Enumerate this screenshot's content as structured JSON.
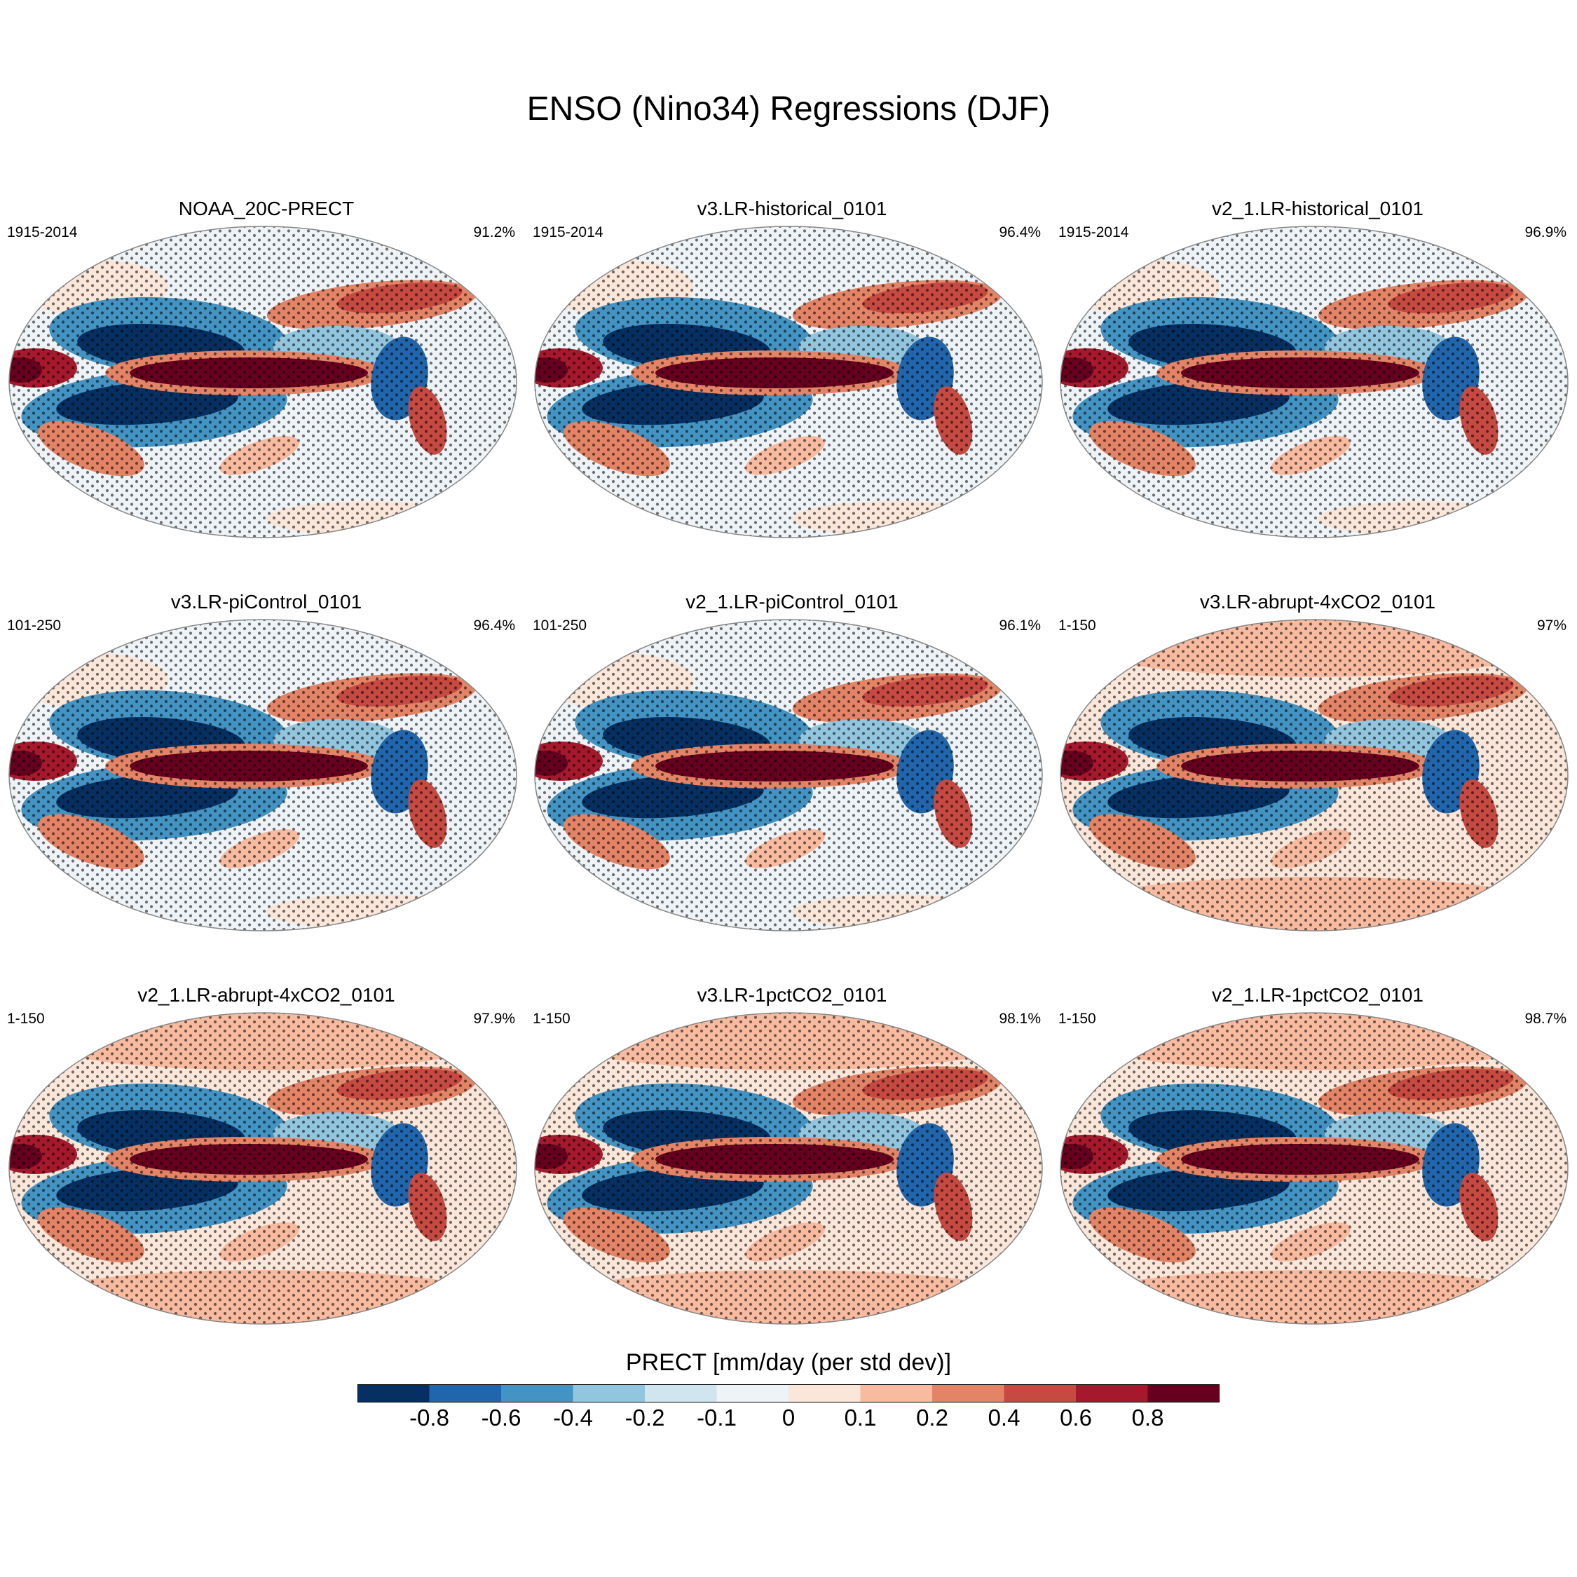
{
  "title": "ENSO (Nino34) Regressions (DJF)",
  "chart_data": {
    "type": "heatmap",
    "title": "ENSO (Nino34) Regressions (DJF)",
    "variable": "PRECT",
    "units": "mm/day (per std dev)",
    "projection": "Robinson (global, Pacific-centered)",
    "stippling": "statistically significant regions",
    "panels": [
      {
        "title": "NOAA_20C-PRECT",
        "period": "1915-2014",
        "pct": "91.2%"
      },
      {
        "title": "v3.LR-historical_0101",
        "period": "1915-2014",
        "pct": "96.4%"
      },
      {
        "title": "v2_1.LR-historical_0101",
        "period": "1915-2014",
        "pct": "96.9%"
      },
      {
        "title": "v3.LR-piControl_0101",
        "period": "101-250",
        "pct": "96.4%"
      },
      {
        "title": "v2_1.LR-piControl_0101",
        "period": "101-250",
        "pct": "96.1%"
      },
      {
        "title": "v3.LR-abrupt-4xCO2_0101",
        "period": "1-150",
        "pct": "97%"
      },
      {
        "title": "v2_1.LR-abrupt-4xCO2_0101",
        "period": "1-150",
        "pct": "97.9%"
      },
      {
        "title": "v3.LR-1pctCO2_0101",
        "period": "1-150",
        "pct": "98.1%"
      },
      {
        "title": "v2_1.LR-1pctCO2_0101",
        "period": "1-150",
        "pct": "98.7%"
      }
    ],
    "colorbar": {
      "title": "PRECT [mm/day (per std dev)]",
      "levels": [
        "-0.8",
        "-0.6",
        "-0.4",
        "-0.2",
        "-0.1",
        "0",
        "0.1",
        "0.2",
        "0.4",
        "0.6",
        "0.8"
      ],
      "colors": [
        "#053061",
        "#2166ac",
        "#4393c3",
        "#92c5de",
        "#d1e5f0",
        "#eef3f7",
        "#fbe6da",
        "#f8bba0",
        "#e48467",
        "#c64a42",
        "#a6192d",
        "#67001f"
      ]
    }
  }
}
